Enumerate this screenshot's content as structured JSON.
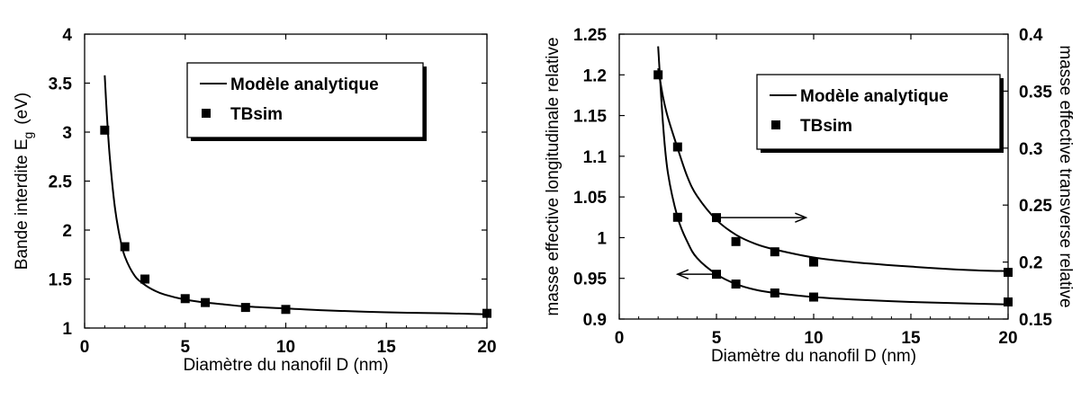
{
  "chart_data": [
    {
      "type": "line",
      "xlabel": "Diamètre du nanofil D (nm)",
      "ylabel": "Bande interdite E",
      "ylabel_subscript": "g",
      "ylabel_unit": "(eV)",
      "xlim": [
        0,
        20
      ],
      "ylim": [
        1,
        4
      ],
      "xticks": [
        "0",
        "5",
        "10",
        "15",
        "20"
      ],
      "yticks": [
        "1",
        "1.5",
        "2",
        "2.5",
        "3",
        "3.5",
        "4"
      ],
      "grid": false,
      "legend_position": "top-center",
      "series": [
        {
          "name": "Modèle analytique",
          "style": "line",
          "x": [
            1,
            1.1,
            1.25,
            1.5,
            1.75,
            2,
            2.5,
            3,
            3.5,
            4,
            5,
            6,
            7,
            8,
            10,
            12,
            15,
            18,
            20
          ],
          "y": [
            3.58,
            3.2,
            2.75,
            2.24,
            1.93,
            1.73,
            1.53,
            1.44,
            1.38,
            1.34,
            1.29,
            1.26,
            1.24,
            1.22,
            1.2,
            1.18,
            1.16,
            1.15,
            1.14
          ]
        },
        {
          "name": "TBsim",
          "style": "square-marker",
          "x": [
            1,
            2,
            3,
            5,
            6,
            8,
            10,
            20
          ],
          "y": [
            3.02,
            1.83,
            1.5,
            1.3,
            1.26,
            1.21,
            1.19,
            1.15
          ]
        }
      ]
    },
    {
      "type": "line",
      "xlabel": "Diamètre du nanofil D (nm)",
      "ylabel": "masse effective longitudinale relative",
      "y2label": "masse effective transverse relative",
      "xlim": [
        0,
        20
      ],
      "ylim": [
        0.9,
        1.25
      ],
      "y2lim": [
        0.15,
        0.4
      ],
      "xticks": [
        "0",
        "5",
        "10",
        "15",
        "20"
      ],
      "yticks": [
        "0.9",
        "0.95",
        "1",
        "1.05",
        "1.1",
        "1.15",
        "1.2",
        "1.25"
      ],
      "y2ticks": [
        "0.15",
        "0.2",
        "0.25",
        "0.3",
        "0.35",
        "0.4"
      ],
      "grid": false,
      "legend_position": "top-right",
      "legend": [
        "Modèle analytique",
        "TBsim"
      ],
      "series": [
        {
          "name": "Modèle analytique",
          "axis": "left",
          "style": "line",
          "x": [
            2,
            2.25,
            2.5,
            3,
            3.5,
            4,
            5,
            6,
            7,
            8,
            10,
            12,
            15,
            18,
            20
          ],
          "y": [
            1.235,
            1.14,
            1.08,
            1.025,
            0.995,
            0.975,
            0.955,
            0.943,
            0.936,
            0.932,
            0.927,
            0.924,
            0.921,
            0.919,
            0.918
          ]
        },
        {
          "name": "TBsim",
          "axis": "left",
          "style": "square-marker",
          "x": [
            2,
            3,
            5,
            6,
            8,
            10,
            20
          ],
          "y": [
            1.2,
            1.025,
            0.955,
            0.943,
            0.932,
            0.927,
            0.921
          ]
        },
        {
          "name": "Modèle analytique",
          "axis": "right",
          "style": "line",
          "x": [
            2,
            2.25,
            2.5,
            3,
            3.5,
            4,
            5,
            6,
            7,
            8,
            10,
            12,
            15,
            18,
            20
          ],
          "y": [
            0.37,
            0.345,
            0.327,
            0.3,
            0.275,
            0.258,
            0.237,
            0.224,
            0.216,
            0.211,
            0.204,
            0.2,
            0.196,
            0.193,
            0.192
          ]
        },
        {
          "name": "TBsim",
          "axis": "right",
          "style": "square-marker",
          "x": [
            3,
            5,
            6,
            8,
            10,
            20
          ],
          "y": [
            0.301,
            0.239,
            0.218,
            0.209,
            0.2,
            0.191
          ]
        }
      ],
      "annotations": [
        {
          "type": "arrow",
          "direction": "right",
          "from": [
            5,
            0.239
          ],
          "to": [
            9.6,
            0.239
          ],
          "axis": "right"
        },
        {
          "type": "arrow",
          "direction": "left",
          "from": [
            5.1,
            0.955
          ],
          "to": [
            3.0,
            0.955
          ],
          "axis": "left"
        }
      ]
    }
  ]
}
